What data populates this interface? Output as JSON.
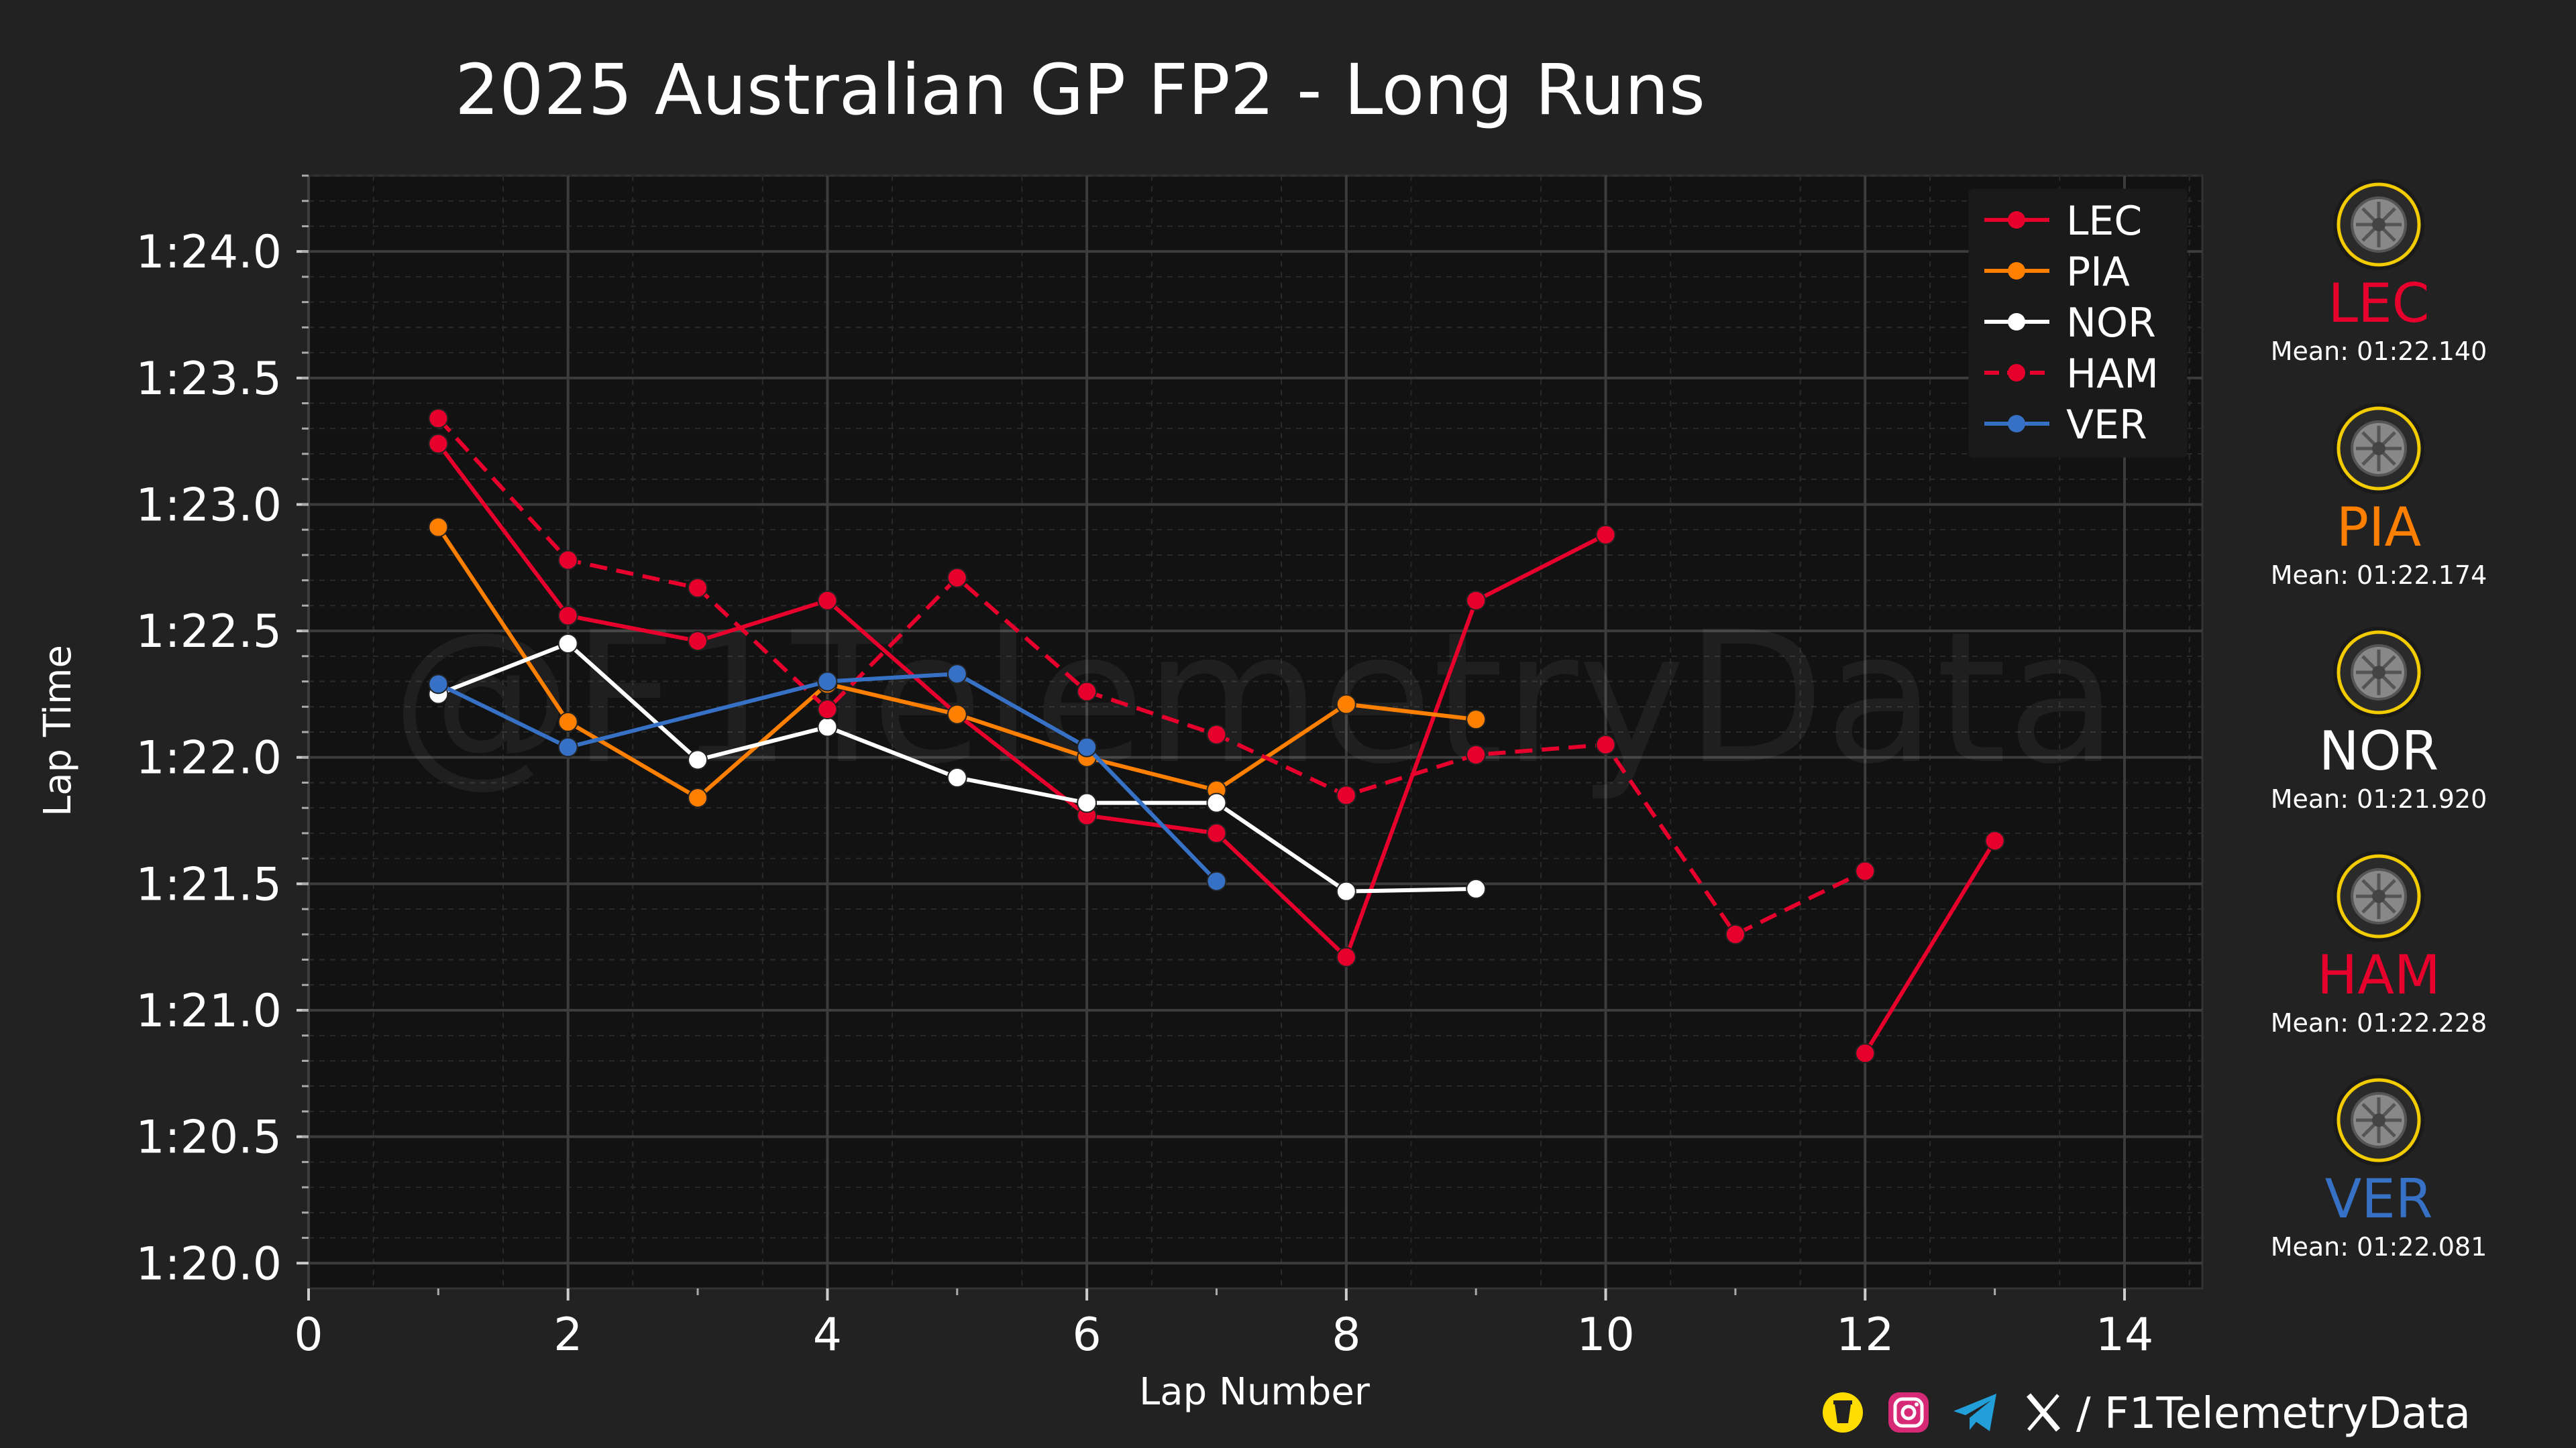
{
  "chart_data": {
    "type": "line",
    "title": "2025 Australian GP FP2 - Long Runs",
    "xlabel": "Lap Number",
    "ylabel": "Lap Time",
    "xlim": [
      0,
      14.6
    ],
    "ylim": [
      79.9,
      84.3
    ],
    "x_ticks": [
      0,
      2,
      4,
      6,
      8,
      10,
      12,
      14
    ],
    "y_ticks": [
      80.0,
      80.5,
      81.0,
      81.5,
      82.0,
      82.5,
      83.0,
      83.5,
      84.0
    ],
    "y_tick_labels": [
      "1:20.0",
      "1:20.5",
      "1:21.0",
      "1:21.5",
      "1:22.0",
      "1:22.5",
      "1:23.0",
      "1:23.5",
      "1:24.0"
    ],
    "grid": true,
    "watermark": "@F1TelemetryData",
    "legend_position": "top-right",
    "series": [
      {
        "name": "LEC",
        "color": "#e8002d",
        "dashed": false,
        "x": [
          1,
          2,
          3,
          4,
          5,
          6,
          7,
          8,
          9,
          10,
          12,
          13
        ],
        "y": [
          83.24,
          82.56,
          82.46,
          82.62,
          82.17,
          81.77,
          81.7,
          81.21,
          82.62,
          82.88,
          80.83,
          81.67
        ],
        "segments": [
          [
            0,
            9
          ],
          [
            10,
            11
          ]
        ]
      },
      {
        "name": "PIA",
        "color": "#ff8000",
        "dashed": false,
        "x": [
          1,
          2,
          3,
          4,
          5,
          6,
          7,
          8,
          9
        ],
        "y": [
          82.91,
          82.14,
          81.84,
          82.29,
          82.17,
          82.0,
          81.87,
          82.21,
          82.15
        ],
        "segments": [
          [
            0,
            8
          ]
        ]
      },
      {
        "name": "NOR",
        "color": "#ffffff",
        "dashed": false,
        "x": [
          1,
          2,
          3,
          4,
          5,
          6,
          7,
          8,
          9
        ],
        "y": [
          82.25,
          82.45,
          81.99,
          82.12,
          81.92,
          81.82,
          81.82,
          81.47,
          81.48
        ],
        "segments": [
          [
            0,
            8
          ]
        ]
      },
      {
        "name": "HAM",
        "color": "#e8002d",
        "dashed": true,
        "x": [
          1,
          2,
          3,
          4,
          5,
          6,
          7,
          8,
          9,
          10,
          11,
          12
        ],
        "y": [
          83.34,
          82.78,
          82.67,
          82.19,
          82.71,
          82.26,
          82.09,
          81.85,
          82.01,
          82.05,
          81.3,
          81.55
        ],
        "segments": [
          [
            0,
            11
          ]
        ]
      },
      {
        "name": "VER",
        "color": "#3671c6",
        "dashed": false,
        "x": [
          1,
          2,
          4,
          5,
          6,
          7
        ],
        "y": [
          82.29,
          82.04,
          82.3,
          82.33,
          82.04,
          81.51
        ],
        "segments": [
          [
            0,
            5
          ]
        ]
      }
    ]
  },
  "sidebar": {
    "mean_prefix": "Mean: ",
    "drivers": [
      {
        "code": "LEC",
        "color": "#e8002d",
        "mean": "01:22.140",
        "tyre_icon": "medium-tyre-icon"
      },
      {
        "code": "PIA",
        "color": "#ff8000",
        "mean": "01:22.174",
        "tyre_icon": "medium-tyre-icon"
      },
      {
        "code": "NOR",
        "color": "#ffffff",
        "mean": "01:21.920",
        "tyre_icon": "medium-tyre-icon"
      },
      {
        "code": "HAM",
        "color": "#e8002d",
        "mean": "01:22.228",
        "tyre_icon": "medium-tyre-icon"
      },
      {
        "code": "VER",
        "color": "#3671c6",
        "mean": "01:22.081",
        "tyre_icon": "medium-tyre-icon"
      }
    ]
  },
  "footer": {
    "handle": "/ F1TelemetryData",
    "icons": [
      "buymeacoffee-icon",
      "instagram-icon",
      "telegram-icon",
      "x-icon"
    ]
  }
}
